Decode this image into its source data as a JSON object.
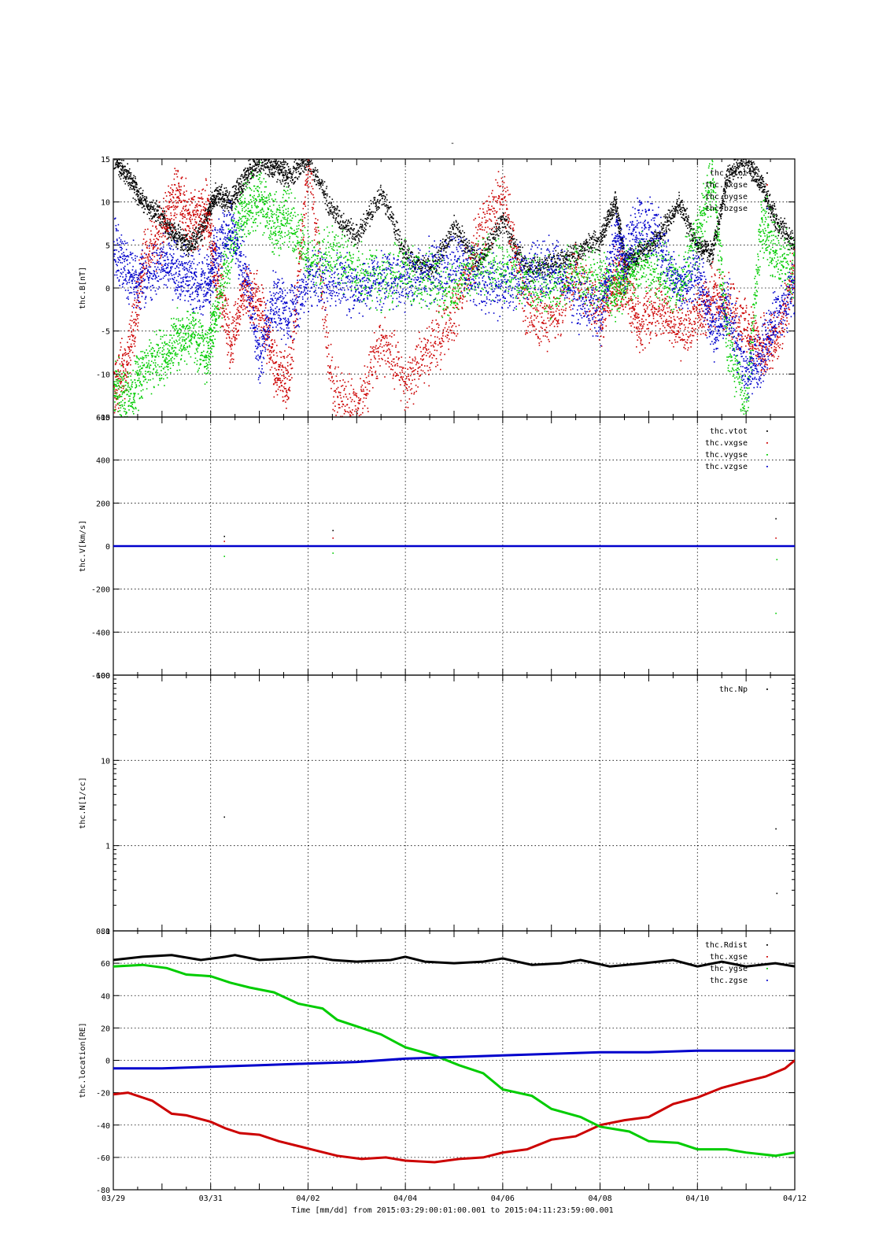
{
  "figure": {
    "title": "-",
    "xlabel": "Time [mm/dd]  from 2015:03:29:00:01:00.001  to  2015:04:11:23:59:00.001"
  },
  "colors": {
    "black": "#000000",
    "red": "#cc0000",
    "green": "#00cc00",
    "blue": "#0000cc"
  },
  "chart_data": [
    {
      "type": "scatter",
      "ylabel": "thc.B[nT]",
      "x_unit": "days since 03/29 00:00",
      "xlim": [
        0,
        14
      ],
      "ylim": [
        -15,
        15
      ],
      "yticks": [
        -15,
        -10,
        -5,
        0,
        5,
        10,
        15
      ],
      "xticks": [
        "03/29",
        "03/31",
        "04/02",
        "04/04",
        "04/06",
        "04/08",
        "04/10",
        "04/12"
      ],
      "legend": "top-right",
      "series": [
        {
          "name": "thc.btot",
          "color": "#000000",
          "x": [
            0,
            0.3,
            0.6,
            1.0,
            1.3,
            1.6,
            1.9,
            2.1,
            2.4,
            2.7,
            3.0,
            3.3,
            3.6,
            4.0,
            4.5,
            5.0,
            5.5,
            6.0,
            6.5,
            7.0,
            7.5,
            8.0,
            8.5,
            9.0,
            9.5,
            10.0,
            10.3,
            10.5,
            10.8,
            11.2,
            11.6,
            12.0,
            12.3,
            12.6,
            13.0,
            13.3,
            13.6,
            14.0
          ],
          "y": [
            15,
            13,
            10,
            8,
            6,
            5,
            8,
            11,
            10,
            13,
            15,
            14,
            13,
            15,
            9,
            6,
            11,
            4,
            2,
            7,
            3,
            8,
            2,
            3,
            4,
            6,
            10,
            3,
            4,
            6,
            10,
            5,
            4,
            13,
            15,
            12,
            8,
            5
          ]
        },
        {
          "name": "thc.bxgse",
          "color": "#cc0000",
          "x": [
            0,
            0.3,
            0.6,
            1.0,
            1.3,
            1.6,
            1.9,
            2.1,
            2.4,
            2.7,
            3.0,
            3.3,
            3.6,
            4.0,
            4.5,
            5.0,
            5.5,
            6.0,
            6.5,
            7.0,
            7.5,
            8.0,
            8.5,
            9.0,
            9.5,
            10.0,
            10.3,
            10.5,
            10.8,
            11.2,
            11.6,
            12.0,
            12.3,
            12.6,
            13.0,
            13.3,
            13.6,
            14.0
          ],
          "y": [
            -12,
            -8,
            3,
            7,
            11,
            8,
            9,
            2,
            -6,
            0,
            -2,
            -9,
            -11,
            15,
            -12,
            -14,
            -6,
            -11,
            -7,
            -3,
            6,
            11,
            -3,
            -4,
            2,
            -3,
            1,
            1,
            -4,
            -2,
            -5,
            -3,
            -1,
            -2,
            -5,
            -7,
            -6,
            2
          ]
        },
        {
          "name": "thc.bygse",
          "color": "#00cc00",
          "x": [
            0,
            0.3,
            0.6,
            1.0,
            1.3,
            1.6,
            1.9,
            2.1,
            2.4,
            2.7,
            3.0,
            3.3,
            3.6,
            4.0,
            4.5,
            5.0,
            5.5,
            6.0,
            6.5,
            7.0,
            7.5,
            8.0,
            8.5,
            9.0,
            9.5,
            10.0,
            10.3,
            10.5,
            10.8,
            11.2,
            11.6,
            12.0,
            12.3,
            12.6,
            13.0,
            13.3,
            13.6,
            14.0
          ],
          "y": [
            -11,
            -13,
            -9,
            -8,
            -6,
            -5,
            -8,
            -3,
            5,
            9,
            11,
            7,
            9,
            3,
            4,
            2,
            1,
            2,
            1,
            0,
            3,
            2,
            1,
            0,
            2,
            1,
            0,
            1,
            3,
            2,
            0,
            6,
            13,
            -6,
            -14,
            8,
            4,
            2
          ]
        },
        {
          "name": "thc.bzgse",
          "color": "#0000cc",
          "x": [
            0,
            0.3,
            0.6,
            1.0,
            1.3,
            1.6,
            1.9,
            2.1,
            2.4,
            2.7,
            3.0,
            3.3,
            3.6,
            4.0,
            4.5,
            5.0,
            5.5,
            6.0,
            6.5,
            7.0,
            7.5,
            8.0,
            8.5,
            9.0,
            9.5,
            10.0,
            10.3,
            10.5,
            10.8,
            11.2,
            11.6,
            12.0,
            12.3,
            12.6,
            13.0,
            13.3,
            13.6,
            14.0
          ],
          "y": [
            5,
            2,
            1,
            3,
            2,
            1,
            0,
            4,
            7,
            2,
            -8,
            -1,
            -3,
            1,
            1,
            0,
            1,
            1,
            2,
            3,
            1,
            0,
            2,
            3,
            -1,
            -3,
            6,
            3,
            8,
            6,
            0,
            2,
            -5,
            -2,
            -10,
            -8,
            -3,
            0
          ]
        }
      ]
    },
    {
      "type": "scatter",
      "ylabel": "thc.V[km/s]",
      "x_unit": "days since 03/29 00:00",
      "xlim": [
        0,
        14
      ],
      "ylim": [
        -600,
        600
      ],
      "yticks": [
        -600,
        -400,
        -200,
        0,
        200,
        400,
        600
      ],
      "xticks": [
        "03/29",
        "03/31",
        "04/02",
        "04/04",
        "04/06",
        "04/08",
        "04/10",
        "04/12"
      ],
      "legend": "top-right",
      "series": [
        {
          "name": "thc.vtot",
          "color": "#000000",
          "x": [
            0,
            2.27,
            4.5,
            13.6,
            14
          ],
          "y": [
            0,
            48,
            75,
            130,
            0
          ]
        },
        {
          "name": "thc.vxgse",
          "color": "#cc0000",
          "x": [
            0,
            2.27,
            4.5,
            13.6,
            14
          ],
          "y": [
            0,
            25,
            40,
            40,
            0
          ]
        },
        {
          "name": "thc.vygse",
          "color": "#00cc00",
          "x": [
            0,
            2.27,
            4.5,
            13.6,
            13.62,
            14
          ],
          "y": [
            0,
            -45,
            -30,
            -310,
            -60,
            0
          ]
        },
        {
          "name": "thc.vzgse",
          "color": "#0000cc",
          "x": [
            0,
            14
          ],
          "y": [
            0,
            0
          ]
        }
      ]
    },
    {
      "type": "scatter",
      "ylabel": "thc.N[1/cc]",
      "x_unit": "days since 03/29 00:00",
      "scale": "log",
      "xlim": [
        0,
        14
      ],
      "ylim": [
        0.1,
        100
      ],
      "yticks": [
        0.1,
        1,
        10,
        100
      ],
      "ytick_labels": [
        "0.1",
        "1",
        "10",
        "100"
      ],
      "xticks": [
        "03/29",
        "03/31",
        "04/02",
        "04/04",
        "04/06",
        "04/08",
        "04/10",
        "04/12"
      ],
      "legend": "top-right",
      "series": [
        {
          "name": "thc.Np",
          "color": "#000000",
          "x": [
            2.27,
            13.6,
            13.62
          ],
          "y": [
            2.2,
            1.6,
            0.28
          ]
        }
      ]
    },
    {
      "type": "line",
      "ylabel": "thc.location[RE]",
      "x_unit": "days since 03/29 00:00",
      "xlim": [
        0,
        14
      ],
      "ylim": [
        -80,
        80
      ],
      "yticks": [
        -80,
        -60,
        -40,
        -20,
        0,
        20,
        40,
        60,
        80
      ],
      "xticks": [
        "03/29",
        "03/31",
        "04/02",
        "04/04",
        "04/06",
        "04/08",
        "04/10",
        "04/12"
      ],
      "legend": "top-right",
      "series": [
        {
          "name": "thc.Rdist",
          "color": "#000000",
          "x": [
            0,
            0.6,
            1.2,
            1.8,
            2.3,
            2.5,
            3.0,
            3.6,
            4.1,
            4.5,
            5.0,
            5.7,
            6.0,
            6.4,
            7.0,
            7.6,
            8.0,
            8.6,
            9.2,
            9.6,
            10.2,
            10.9,
            11.5,
            12.0,
            12.5,
            13.0,
            13.6,
            14.0
          ],
          "y": [
            62,
            64,
            65,
            62,
            64,
            65,
            62,
            63,
            64,
            62,
            61,
            62,
            64,
            61,
            60,
            61,
            63,
            59,
            60,
            62,
            58,
            60,
            62,
            58,
            61,
            58,
            60,
            58
          ]
        },
        {
          "name": "thc.xgse",
          "color": "#cc0000",
          "x": [
            0,
            0.3,
            0.8,
            1.2,
            1.5,
            2.0,
            2.3,
            2.6,
            3.0,
            3.4,
            3.8,
            4.2,
            4.6,
            5.1,
            5.6,
            6.0,
            6.6,
            7.1,
            7.6,
            8.0,
            8.5,
            9.0,
            9.5,
            10.0,
            10.5,
            11.0,
            11.5,
            12.0,
            12.5,
            13.0,
            13.4,
            13.8,
            14.0
          ],
          "y": [
            -21,
            -20,
            -25,
            -33,
            -34,
            -38,
            -42,
            -45,
            -46,
            -50,
            -53,
            -56,
            -59,
            -61,
            -60,
            -62,
            -63,
            -61,
            -60,
            -57,
            -55,
            -49,
            -47,
            -40,
            -37,
            -35,
            -27,
            -23,
            -17,
            -13,
            -10,
            -5,
            0
          ]
        },
        {
          "name": "thc.ygse",
          "color": "#00cc00",
          "x": [
            0,
            0.6,
            1.1,
            1.5,
            2.0,
            2.4,
            2.8,
            3.3,
            3.8,
            4.3,
            4.6,
            5.0,
            5.5,
            6.0,
            6.6,
            7.1,
            7.6,
            8.0,
            8.6,
            9.0,
            9.6,
            10.0,
            10.6,
            11.0,
            11.6,
            12.0,
            12.6,
            13.0,
            13.6,
            14.0
          ],
          "y": [
            58,
            59,
            57,
            53,
            52,
            48,
            45,
            42,
            35,
            32,
            25,
            21,
            16,
            8,
            3,
            -3,
            -8,
            -18,
            -22,
            -30,
            -35,
            -41,
            -44,
            -50,
            -51,
            -55,
            -55,
            -57,
            -59,
            -57
          ]
        },
        {
          "name": "thc.zgse",
          "color": "#0000cc",
          "x": [
            0,
            1.0,
            2.0,
            3.0,
            4.0,
            5.0,
            6.0,
            7.0,
            8.0,
            9.0,
            10.0,
            11.0,
            12.0,
            13.0,
            14.0
          ],
          "y": [
            -5,
            -5,
            -4,
            -3,
            -2,
            -1,
            1,
            2,
            3,
            4,
            5,
            5,
            6,
            6,
            6
          ]
        }
      ]
    }
  ]
}
